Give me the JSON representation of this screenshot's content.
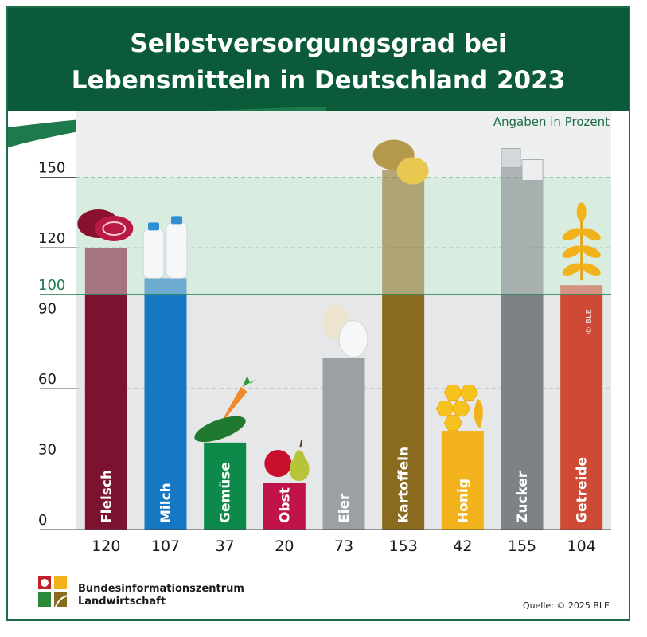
{
  "header": {
    "title_line1": "Selbstversorgungsgrad bei",
    "title_line2": "Lebensmitteln in Deutschland 2023",
    "background_color": "#0b5b3a"
  },
  "unit_label": "Angaben in Prozent",
  "copyright_mark": "© BLE",
  "footer": {
    "org_line1": "Bundesinformationszentrum",
    "org_line2": "Landwirtschaft",
    "source": "Quelle: © 2025 BLE"
  },
  "chart_data": {
    "type": "bar",
    "title": "Selbstversorgungsgrad bei Lebensmitteln in Deutschland 2023",
    "ylabel": "",
    "xlabel": "",
    "ylim": [
      0,
      150
    ],
    "yticks": [
      0,
      30,
      60,
      90,
      120,
      150
    ],
    "reference_line": {
      "value": 100,
      "label": "100",
      "color": "#1d7a4a"
    },
    "grid": "dashed horizontal",
    "categories": [
      "Fleisch",
      "Milch",
      "Gemüse",
      "Obst",
      "Eier",
      "Kartoffeln",
      "Honig",
      "Zucker",
      "Getreide"
    ],
    "values": [
      120,
      107,
      37,
      20,
      73,
      153,
      42,
      155,
      104
    ],
    "value_labels": [
      "120",
      "107",
      "37",
      "20",
      "73",
      "153",
      "42",
      "155",
      "104"
    ],
    "colors": [
      "#7b1230",
      "#1677c2",
      "#0d8a49",
      "#c0134a",
      "#9aa0a4",
      "#8a6a1e",
      "#f2b21c",
      "#7c8286",
      "#cf4a34"
    ],
    "icons": [
      "meat-icon",
      "milk-bottles-icon",
      "carrot-cucumber-icon",
      "apple-pear-icon",
      "eggs-icon",
      "potatoes-icon",
      "honeycomb-icon",
      "sugar-cubes-icon",
      "wheat-icon"
    ]
  }
}
